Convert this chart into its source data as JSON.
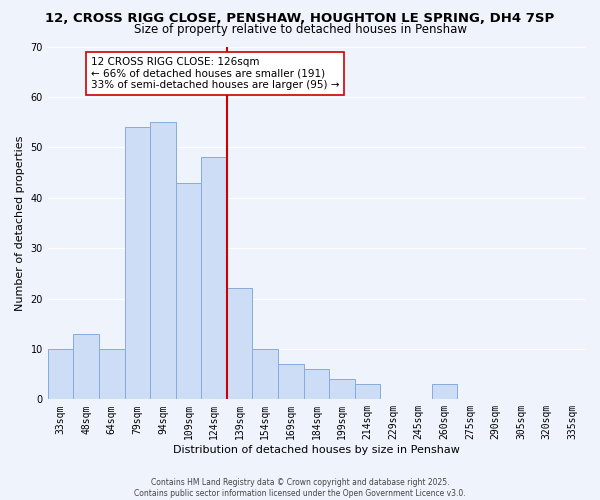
{
  "title": "12, CROSS RIGG CLOSE, PENSHAW, HOUGHTON LE SPRING, DH4 7SP",
  "subtitle": "Size of property relative to detached houses in Penshaw",
  "xlabel": "Distribution of detached houses by size in Penshaw",
  "ylabel": "Number of detached properties",
  "bin_labels": [
    "33sqm",
    "48sqm",
    "64sqm",
    "79sqm",
    "94sqm",
    "109sqm",
    "124sqm",
    "139sqm",
    "154sqm",
    "169sqm",
    "184sqm",
    "199sqm",
    "214sqm",
    "229sqm",
    "245sqm",
    "260sqm",
    "275sqm",
    "290sqm",
    "305sqm",
    "320sqm",
    "335sqm"
  ],
  "bar_values": [
    10,
    13,
    10,
    54,
    55,
    43,
    48,
    22,
    10,
    7,
    6,
    4,
    3,
    0,
    0,
    3,
    0,
    0,
    0,
    0,
    0
  ],
  "bar_color": "#ccddf5",
  "bar_edge_color": "#88aadd",
  "vline_color": "#cc0000",
  "ylim": [
    0,
    70
  ],
  "yticks": [
    0,
    10,
    20,
    30,
    40,
    50,
    60,
    70
  ],
  "annotation_title": "12 CROSS RIGG CLOSE: 126sqm",
  "annotation_line1": "← 66% of detached houses are smaller (191)",
  "annotation_line2": "33% of semi-detached houses are larger (95) →",
  "annotation_box_facecolor": "#ffffff",
  "annotation_box_edgecolor": "#cc0000",
  "footer_line1": "Contains HM Land Registry data © Crown copyright and database right 2025.",
  "footer_line2": "Contains public sector information licensed under the Open Government Licence v3.0.",
  "background_color": "#eef3fc",
  "grid_color": "#ffffff",
  "title_fontsize": 9.5,
  "subtitle_fontsize": 8.5,
  "ylabel_fontsize": 8,
  "xlabel_fontsize": 8,
  "tick_fontsize": 7,
  "annotation_fontsize": 7.5,
  "footer_fontsize": 5.5
}
